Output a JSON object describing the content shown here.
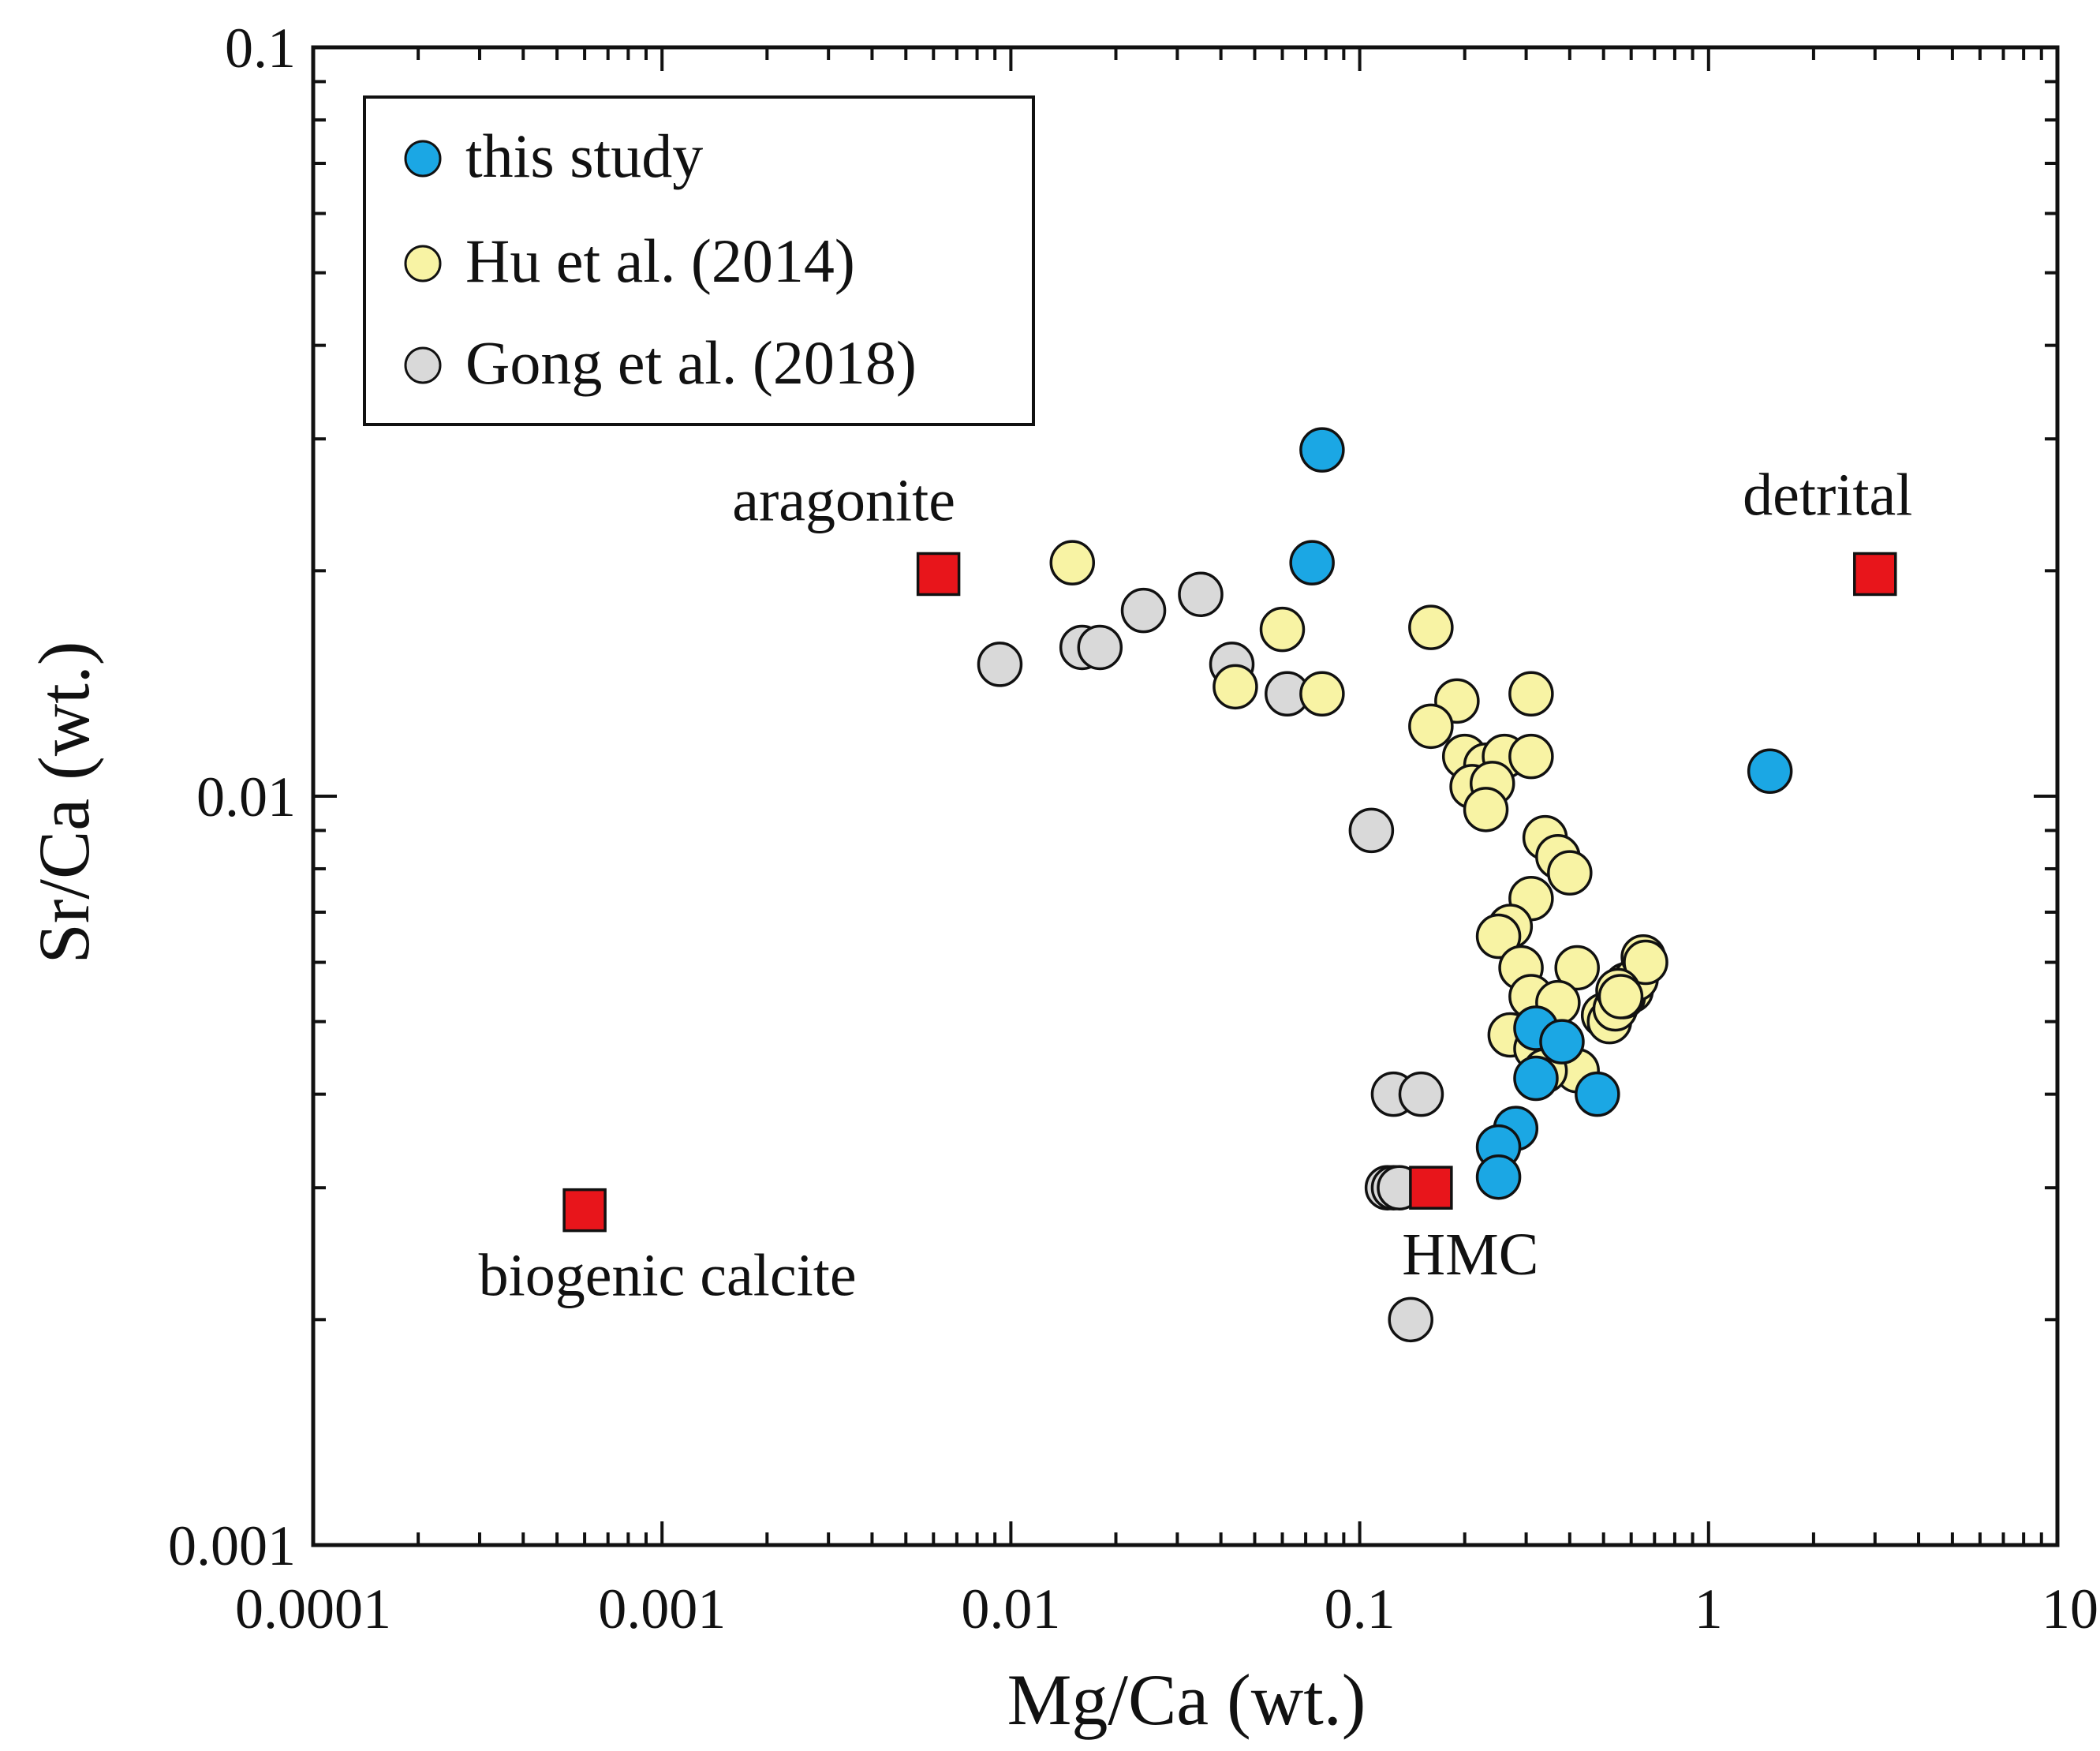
{
  "chart_data": {
    "type": "scatter",
    "title": "",
    "xlabel": "Mg/Ca (wt.)",
    "ylabel": "Sr/Ca (wt.)",
    "xscale": "log",
    "yscale": "log",
    "xlim": [
      0.0001,
      10
    ],
    "ylim": [
      0.001,
      0.1
    ],
    "grid": false,
    "x_tick_labels": [
      "0.0001",
      "0.001",
      "0.01",
      "0.1",
      "1",
      "10"
    ],
    "y_tick_labels": [
      "0.001",
      "0.01",
      "0.1"
    ],
    "legend_position": "top-left",
    "series": [
      {
        "name": "this study",
        "marker": "circle",
        "color": "#1ba7e4",
        "points": [
          [
            0.078,
            0.029
          ],
          [
            0.073,
            0.0205
          ],
          [
            1.5,
            0.0108
          ],
          [
            0.32,
            0.0049
          ],
          [
            0.38,
            0.0047
          ],
          [
            0.32,
            0.0042
          ],
          [
            0.48,
            0.004
          ],
          [
            0.28,
            0.0036
          ],
          [
            0.25,
            0.0034
          ],
          [
            0.25,
            0.0031
          ]
        ]
      },
      {
        "name": "Hu et al. (2014)",
        "marker": "circle",
        "color": "#f8f3a4",
        "points": [
          [
            0.015,
            0.0205
          ],
          [
            0.06,
            0.0167
          ],
          [
            0.044,
            0.014
          ],
          [
            0.078,
            0.0137
          ],
          [
            0.16,
            0.0168
          ],
          [
            0.19,
            0.0134
          ],
          [
            0.16,
            0.0124
          ],
          [
            0.31,
            0.0137
          ],
          [
            0.2,
            0.0113
          ],
          [
            0.23,
            0.011
          ],
          [
            0.26,
            0.0113
          ],
          [
            0.31,
            0.0113
          ],
          [
            0.21,
            0.0103
          ],
          [
            0.24,
            0.0104
          ],
          [
            0.23,
            0.0096
          ],
          [
            0.34,
            0.0088
          ],
          [
            0.37,
            0.0083
          ],
          [
            0.4,
            0.0079
          ],
          [
            0.31,
            0.0073
          ],
          [
            0.27,
            0.0067
          ],
          [
            0.25,
            0.0065
          ],
          [
            0.29,
            0.0059
          ],
          [
            0.42,
            0.0059
          ],
          [
            0.31,
            0.0054
          ],
          [
            0.37,
            0.0053
          ],
          [
            0.27,
            0.0048
          ],
          [
            0.32,
            0.0046
          ],
          [
            0.42,
            0.0043
          ],
          [
            0.34,
            0.0043
          ],
          [
            0.5,
            0.0051
          ],
          [
            0.52,
            0.005
          ],
          [
            0.55,
            0.0053
          ],
          [
            0.58,
            0.0056
          ],
          [
            0.6,
            0.0055
          ],
          [
            0.54,
            0.0052
          ],
          [
            0.57,
            0.0054
          ],
          [
            0.62,
            0.0057
          ],
          [
            0.65,
            0.0061
          ],
          [
            0.66,
            0.006
          ],
          [
            0.55,
            0.0055
          ],
          [
            0.56,
            0.0054
          ]
        ]
      },
      {
        "name": "Gong et al. (2018)",
        "marker": "circle",
        "color": "#d9d9d9",
        "points": [
          [
            0.0093,
            0.015
          ],
          [
            0.016,
            0.0158
          ],
          [
            0.018,
            0.0158
          ],
          [
            0.024,
            0.0177
          ],
          [
            0.035,
            0.0186
          ],
          [
            0.043,
            0.015
          ],
          [
            0.062,
            0.0137
          ],
          [
            0.108,
            0.009
          ],
          [
            0.125,
            0.004
          ],
          [
            0.15,
            0.004
          ],
          [
            0.12,
            0.003
          ],
          [
            0.125,
            0.003
          ],
          [
            0.13,
            0.003
          ],
          [
            0.14,
            0.002
          ]
        ]
      }
    ],
    "reference_points": [
      {
        "label": "aragonite",
        "x": 0.0062,
        "y": 0.0198,
        "marker": "square",
        "color": "#e8151b"
      },
      {
        "label": "detrital",
        "x": 3.0,
        "y": 0.0198,
        "marker": "square",
        "color": "#e8151b"
      },
      {
        "label": "HMC",
        "x": 0.16,
        "y": 0.003,
        "marker": "square",
        "color": "#e8151b"
      },
      {
        "label": "biogenic calcite",
        "x": 0.0006,
        "y": 0.0028,
        "marker": "square",
        "color": "#e8151b"
      }
    ]
  }
}
